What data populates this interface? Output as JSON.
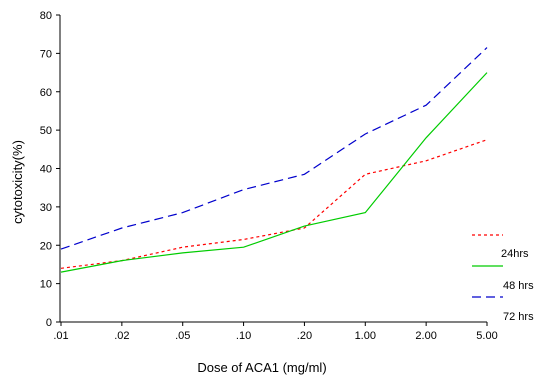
{
  "chart_data": {
    "type": "line",
    "title": "",
    "xlabel": "Dose of ACA1 (mg/ml)",
    "ylabel": "cytotoxicity(%)",
    "categories": [
      ".01",
      ".02",
      ".05",
      ".10",
      ".20",
      "1.00",
      "2.00",
      "5.00"
    ],
    "ylim": [
      0,
      80
    ],
    "yticks": [
      "0",
      "10",
      "20",
      "30",
      "40",
      "50",
      "60",
      "70",
      "80"
    ],
    "grid": false,
    "legend_position": "right",
    "series": [
      {
        "name": "24hrs",
        "color": "#ff0000",
        "dash": "dotted",
        "values": [
          14,
          16,
          19.5,
          21.5,
          24.5,
          38.5,
          42,
          47.5
        ]
      },
      {
        "name": "48 hrs",
        "color": "#00cc00",
        "dash": "solid",
        "values": [
          13,
          16,
          18,
          19.5,
          25,
          28.5,
          48,
          65
        ]
      },
      {
        "name": "72 hrs",
        "color": "#0000cc",
        "dash": "dashed",
        "values": [
          19,
          24.5,
          28.5,
          34.5,
          38.5,
          49,
          56.5,
          71.5
        ]
      }
    ]
  }
}
